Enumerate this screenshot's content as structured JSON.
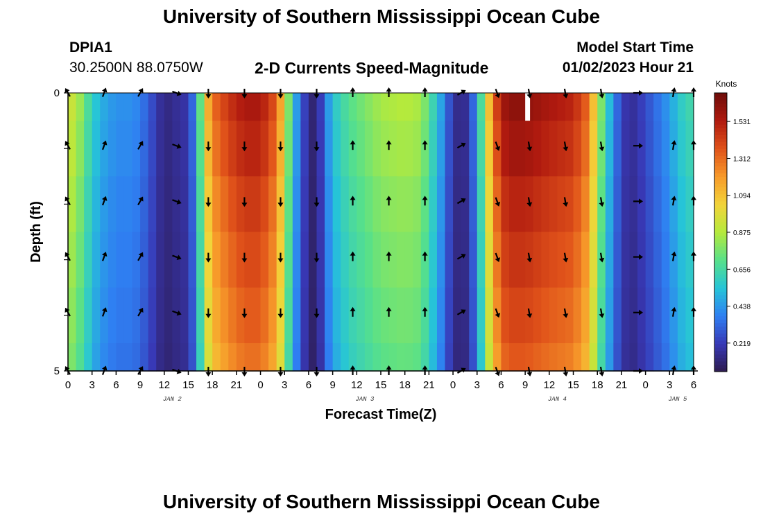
{
  "page": {
    "title": "University of Southern Mississippi Ocean Cube",
    "bottom_title": "University of Southern Mississippi Ocean Cube",
    "station": "DPIA1",
    "location": "30.2500N  88.0750W",
    "subtitle": "2-D Currents Speed-Magnitude",
    "model_label": "Model Start Time",
    "model_time": "01/02/2023 Hour 21"
  },
  "colors": {
    "scale": [
      "#2d1b4f",
      "#3838b5",
      "#2f7ff2",
      "#26c4d8",
      "#57e08a",
      "#b5ea3c",
      "#f2d43a",
      "#f79a2a",
      "#e0521a",
      "#b01a0f",
      "#6e0d0a"
    ]
  },
  "chart_data": {
    "type": "heatmap",
    "title": "2-D Currents Speed-Magnitude",
    "xlabel": "Forecast Time(Z)",
    "ylabel": "Depth (ft)",
    "x_tick_labels": [
      "0",
      "3",
      "6",
      "9",
      "12",
      "15",
      "18",
      "21",
      "0",
      "3",
      "6",
      "9",
      "12",
      "15",
      "18",
      "21",
      "0",
      "3",
      "6",
      "9",
      "12",
      "15",
      "18",
      "21",
      "0",
      "3",
      "6"
    ],
    "date_labels": [
      {
        "label": "JAN 2",
        "hour": 13
      },
      {
        "label": "JAN 3",
        "hour": 37
      },
      {
        "label": "JAN 4",
        "hour": 61
      },
      {
        "label": "JAN 5",
        "hour": 76
      }
    ],
    "x_range": [
      0,
      78
    ],
    "y_tick_labels": [
      "0",
      "5"
    ],
    "y_range": [
      0,
      5
    ],
    "colorbar_label": "Knots",
    "colorbar_ticks": [
      "0.219",
      "0.438",
      "0.656",
      "0.875",
      "1.094",
      "1.312",
      "1.531"
    ],
    "colorbar_range": [
      0.05,
      1.7
    ],
    "depth_rows": [
      0,
      1,
      2,
      3,
      4,
      5
    ],
    "speed_profile": {
      "hours": [
        0,
        1,
        3,
        4,
        6,
        8,
        9,
        10,
        11,
        12,
        13,
        15,
        16,
        17,
        18,
        20,
        22,
        24,
        26,
        27,
        28,
        29,
        30,
        31,
        32,
        33,
        35,
        39,
        42,
        44,
        45,
        46,
        47,
        48,
        49,
        50,
        51,
        52,
        53,
        54,
        55,
        57,
        60,
        63,
        65,
        66,
        67,
        68,
        69,
        70,
        71,
        73,
        75,
        76,
        77,
        78
      ],
      "speeds": [
        0.95,
        0.9,
        0.6,
        0.5,
        0.42,
        0.42,
        0.38,
        0.3,
        0.22,
        0.12,
        0.15,
        0.2,
        0.45,
        1.0,
        1.3,
        1.45,
        1.55,
        1.55,
        1.35,
        1.0,
        0.55,
        0.35,
        0.12,
        0.1,
        0.35,
        0.55,
        0.7,
        0.85,
        0.88,
        0.85,
        0.7,
        0.55,
        0.38,
        0.18,
        0.12,
        0.2,
        0.45,
        0.9,
        1.3,
        1.55,
        1.62,
        1.62,
        1.55,
        1.5,
        1.3,
        0.9,
        0.65,
        0.4,
        0.25,
        0.15,
        0.2,
        0.32,
        0.45,
        0.55,
        0.62,
        0.65
      ]
    },
    "depth_factors": [
      1.0,
      0.97,
      0.93,
      0.9,
      0.87,
      0.84
    ],
    "arrows": {
      "hours": [
        0,
        4.5,
        9,
        13.5,
        17.5,
        22,
        26.5,
        31,
        35.5,
        40,
        44.5,
        49,
        53.5,
        57.5,
        62,
        66.5,
        71,
        75.5,
        78
      ],
      "angles_deg": [
        330,
        20,
        30,
        110,
        180,
        180,
        180,
        180,
        0,
        0,
        0,
        60,
        160,
        170,
        170,
        170,
        90,
        10,
        0
      ]
    },
    "missing": {
      "hour": 57,
      "depth_top": 0,
      "depth_bottom": 1
    }
  }
}
